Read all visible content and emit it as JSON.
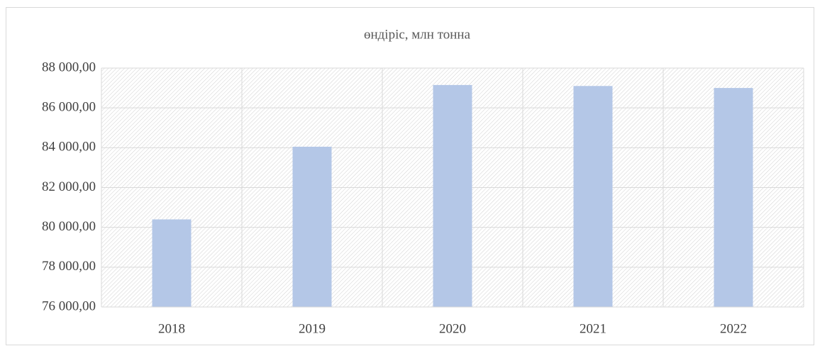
{
  "chart_data": {
    "type": "bar",
    "title": "өндіріс, млн тонна",
    "categories": [
      "2018",
      "2019",
      "2020",
      "2021",
      "2022"
    ],
    "values": [
      80400,
      84050,
      87150,
      87100,
      87000
    ],
    "color": "#b4c7e7",
    "ylim": [
      76000,
      88000
    ],
    "yticks": [
      {
        "value": 76000,
        "label": "76 000,00"
      },
      {
        "value": 78000,
        "label": "78 000,00"
      },
      {
        "value": 80000,
        "label": "80 000,00"
      },
      {
        "value": 82000,
        "label": "82 000,00"
      },
      {
        "value": 84000,
        "label": "84 000,00"
      },
      {
        "value": 86000,
        "label": "86 000,00"
      },
      {
        "value": 88000,
        "label": "88 000,00"
      }
    ],
    "grid": true
  }
}
